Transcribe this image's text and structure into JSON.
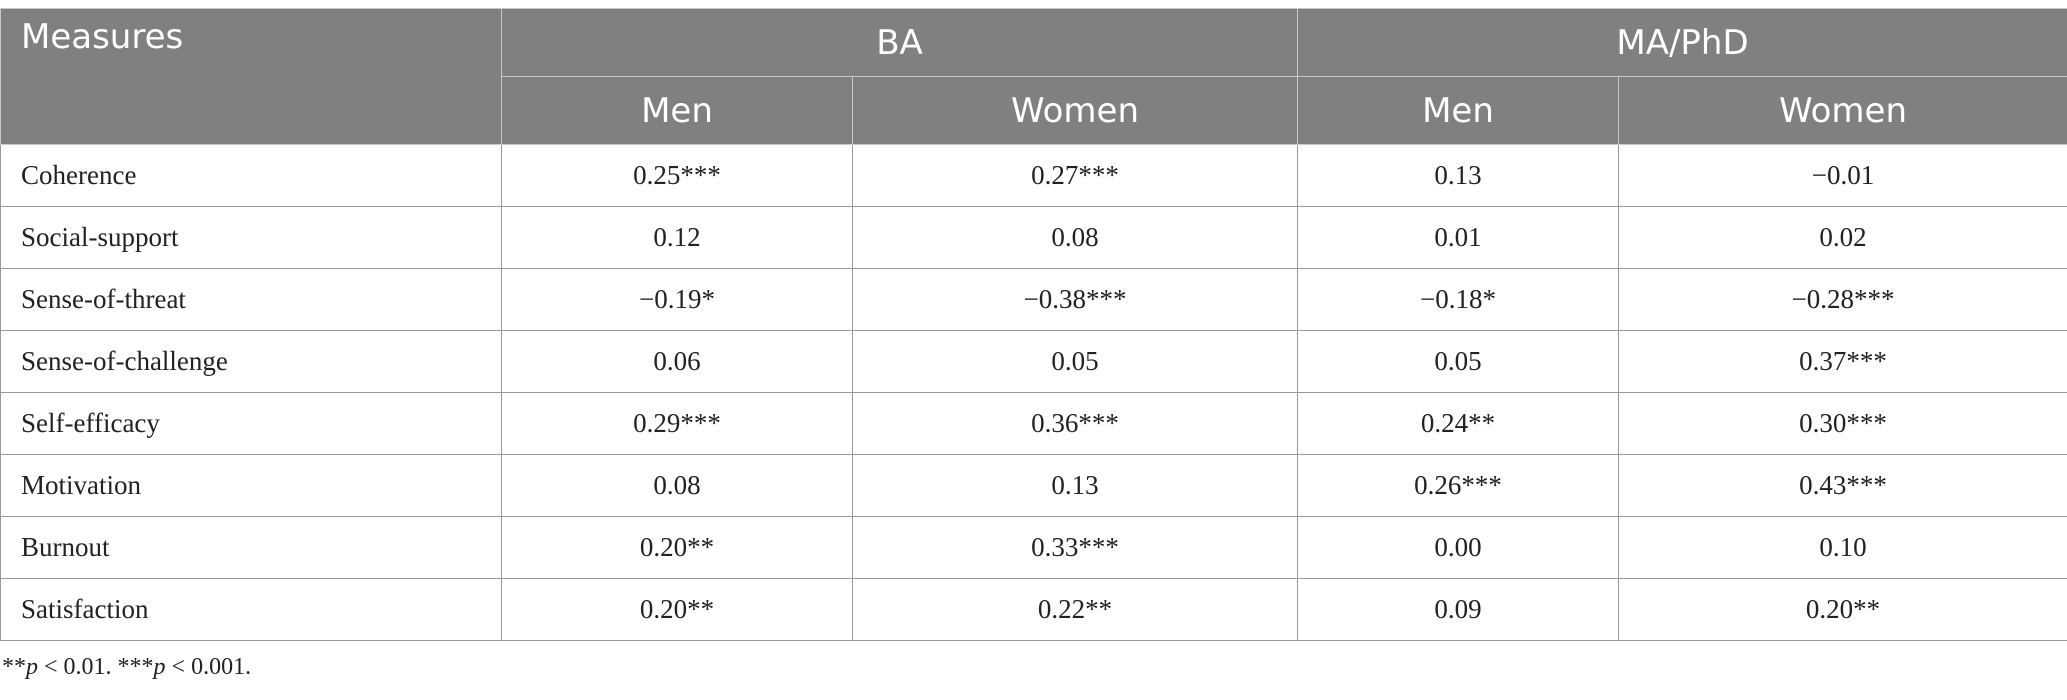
{
  "table": {
    "header": {
      "measures": "Measures",
      "group_ba": "BA",
      "group_ma": "MA/PhD",
      "ba_men": "Men",
      "ba_women": "Women",
      "ma_men": "Men",
      "ma_women": "Women"
    },
    "rows": [
      {
        "measure": "Coherence",
        "ba_men": "0.25***",
        "ba_women": "0.27***",
        "ma_men": "0.13",
        "ma_women": "−0.01"
      },
      {
        "measure": "Social-support",
        "ba_men": "0.12",
        "ba_women": "0.08",
        "ma_men": "0.01",
        "ma_women": "0.02"
      },
      {
        "measure": "Sense-of-threat",
        "ba_men": "−0.19*",
        "ba_women": "−0.38***",
        "ma_men": "−0.18*",
        "ma_women": "−0.28***"
      },
      {
        "measure": "Sense-of-challenge",
        "ba_men": "0.06",
        "ba_women": "0.05",
        "ma_men": "0.05",
        "ma_women": "0.37***"
      },
      {
        "measure": "Self-efficacy",
        "ba_men": "0.29***",
        "ba_women": "0.36***",
        "ma_men": "0.24**",
        "ma_women": "0.30***"
      },
      {
        "measure": "Motivation",
        "ba_men": "0.08",
        "ba_women": "0.13",
        "ma_men": "0.26***",
        "ma_women": "0.43***"
      },
      {
        "measure": "Burnout",
        "ba_men": "0.20**",
        "ba_women": "0.33***",
        "ma_men": "0.00",
        "ma_women": "0.10"
      },
      {
        "measure": "Satisfaction",
        "ba_men": "0.20**",
        "ba_women": "0.22**",
        "ma_men": "0.09",
        "ma_women": "0.20**"
      }
    ]
  },
  "footnote": {
    "part1_stars": "**",
    "part1_p": "p",
    "part1_rest": " < 0.01. ",
    "part2_stars": "***",
    "part2_p": "p",
    "part2_rest": " < 0.001."
  }
}
